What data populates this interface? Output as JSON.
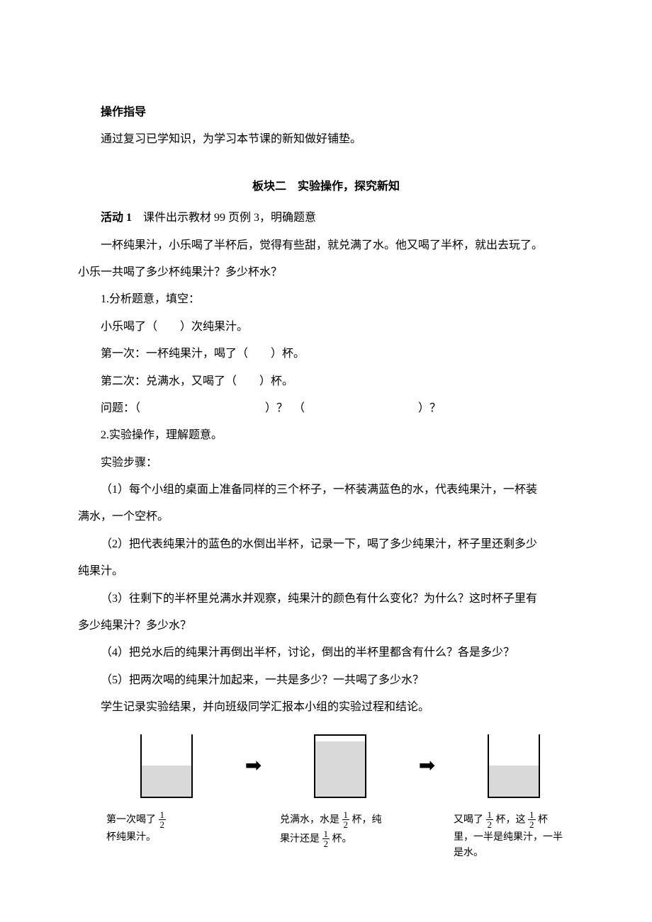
{
  "intro": {
    "heading": "操作指导",
    "text": "通过复习已学知识，为学习本节课的新知做好铺垫。"
  },
  "section2": {
    "title": "板块二　实验操作，探究新知",
    "activity_label": "活动 1",
    "activity_text": "　课件出示教材 99 页例 3，明确题意",
    "problem1": "一杯纯果汁，小乐喝了半杯后，觉得有些甜，就兑满了水。他又喝了半杯，就出去玩了。",
    "problem2": "小乐一共喝了多少杯纯果汁？多少杯水？",
    "step1_heading": "1.分析题意，填空：",
    "line_a": "小乐喝了（　　）次纯果汁。",
    "line_b": "第一次：一杯纯果汁，喝了（　　）杯。",
    "line_c": "第二次：兑满水，又喝了（　　）杯。",
    "q_label": "问题：（",
    "q_mid": "）？　（",
    "q_end": "）？",
    "step2_heading": "2.实验操作，理解题意。",
    "exp_steps_label": "实验步骤：",
    "s1": "（1）每个小组的桌面上准备同样的三个杯子，一杯装满蓝色的水，代表纯果汁，一杯装",
    "s1b": "满水，一个空杯。",
    "s2": "（2）把代表纯果汁的蓝色的水倒出半杯，记录一下，喝了多少纯果汁，杯子里还剩多少",
    "s2b": "纯果汁。",
    "s3": "（3）往剩下的半杯里兑满水并观察，纯果汁的颜色有什么变化？为什么？这时杯子里有",
    "s3b": "多少纯果汁？多少水？",
    "s4": "（4）把兑水后的纯果汁再倒出半杯，讨论，倒出的半杯里都含有什么？各是多少？",
    "s5": "（5）把两次喝的纯果汁加起来，一共是多少？一共喝了多少水？",
    "record": "学生记录实验结果，并向班级同学汇报本小组的实验过程和结论。"
  },
  "diagram": {
    "arrow": "➡",
    "cap1_a": "第一次喝了",
    "cap1_b": "杯纯果汁。",
    "cap2_a": "兑满水，水是",
    "cap2_b": "杯，纯",
    "cap2_c": "果汁还是",
    "cap2_d": "杯。",
    "cap3_a": "又喝了",
    "cap3_b": "杯，这",
    "cap3_c": "杯",
    "cap3_d": "里，一半是纯果汁，一半",
    "cap3_e": "是水。",
    "frac_num": "1",
    "frac_den": "2"
  },
  "colors": {
    "text": "#000000",
    "background": "#ffffff",
    "fill": "#d9d9d9"
  }
}
